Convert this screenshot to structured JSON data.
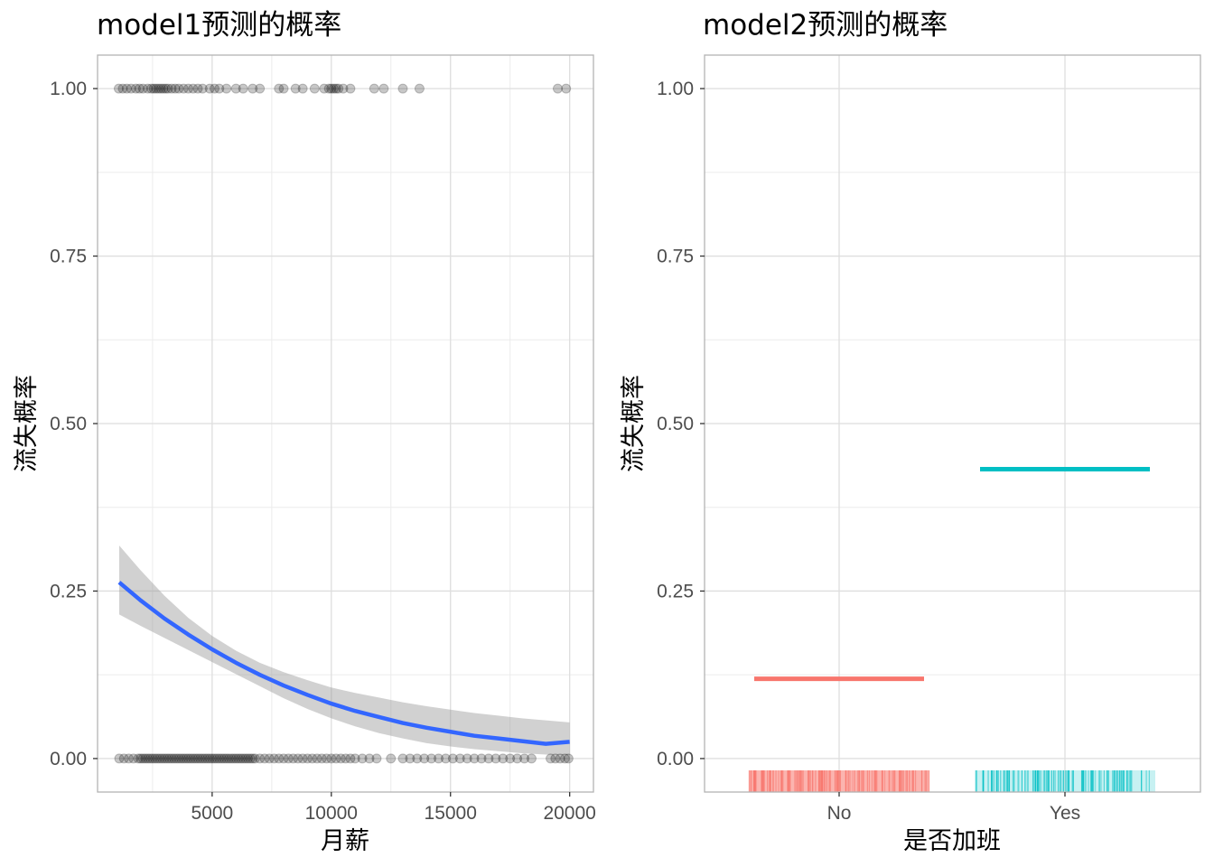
{
  "chart_data": [
    {
      "type": "scatter",
      "title": "model1预测的概率",
      "xlabel": "月薪",
      "ylabel": "流失概率",
      "xlim": [
        192,
        20998
      ],
      "ylim": [
        -0.05,
        1.05
      ],
      "xticks": [
        5000,
        10000,
        15000,
        20000
      ],
      "xtick_labels": [
        "5000",
        "10000",
        "15000",
        "20000"
      ],
      "yticks": [
        0,
        0.25,
        0.5,
        0.75,
        1
      ],
      "ytick_labels": [
        "0.00",
        "0.25",
        "0.50",
        "0.75",
        "1.00"
      ],
      "grid": true,
      "colors": {
        "points": "#000000",
        "curve": "#3366ff",
        "band": "#999999"
      },
      "points_y1": [
        1081,
        1250,
        1420,
        1600,
        1800,
        1950,
        2100,
        2300,
        2450,
        2550,
        2650,
        2750,
        2850,
        2950,
        3050,
        3150,
        3300,
        3450,
        3600,
        3800,
        4000,
        4200,
        4400,
        4600,
        4900,
        5100,
        5300,
        5600,
        6000,
        6300,
        6700,
        7000,
        7800,
        8000,
        8500,
        8800,
        9300,
        9700,
        9900,
        10000,
        10100,
        10200,
        10300,
        10500,
        10800,
        11800,
        12200,
        13000,
        13700,
        19500,
        19850
      ],
      "points_y0": [
        1100,
        1300,
        1500,
        1700,
        1900,
        2000,
        2100,
        2200,
        2300,
        2400,
        2500,
        2600,
        2700,
        2800,
        2900,
        3000,
        3100,
        3200,
        3300,
        3400,
        3500,
        3600,
        3700,
        3800,
        3900,
        4000,
        4100,
        4200,
        4300,
        4400,
        4500,
        4600,
        4700,
        4800,
        4900,
        5000,
        5100,
        5200,
        5300,
        5400,
        5500,
        5600,
        5700,
        5800,
        5900,
        6000,
        6100,
        6200,
        6300,
        6400,
        6500,
        6600,
        6700,
        6800,
        7000,
        7200,
        7400,
        7600,
        7800,
        8000,
        8200,
        8400,
        8600,
        8800,
        9000,
        9200,
        9400,
        9600,
        9800,
        10000,
        10200,
        10400,
        10600,
        10800,
        11000,
        11300,
        11600,
        11900,
        12500,
        13000,
        13300,
        13600,
        13900,
        14200,
        14500,
        14800,
        15100,
        15400,
        15700,
        16000,
        16300,
        16600,
        16900,
        17200,
        17500,
        17800,
        18100,
        18400,
        19200,
        19400,
        19600,
        19800,
        19950
      ],
      "curve": {
        "x": [
          1100,
          2000,
          3000,
          4000,
          5000,
          6000,
          7000,
          8000,
          9000,
          10000,
          11000,
          12000,
          13000,
          14000,
          15000,
          16000,
          17000,
          18000,
          19000,
          20000
        ],
        "fit": [
          0.263,
          0.236,
          0.209,
          0.185,
          0.163,
          0.143,
          0.125,
          0.109,
          0.095,
          0.082,
          0.071,
          0.062,
          0.053,
          0.046,
          0.04,
          0.034,
          0.03,
          0.026,
          0.022,
          0.025
        ],
        "lower": [
          0.215,
          0.198,
          0.18,
          0.162,
          0.144,
          0.126,
          0.108,
          0.09,
          0.074,
          0.06,
          0.048,
          0.038,
          0.03,
          0.023,
          0.018,
          0.014,
          0.011,
          0.008,
          0.006,
          0.005
        ],
        "upper": [
          0.318,
          0.281,
          0.243,
          0.21,
          0.183,
          0.161,
          0.143,
          0.129,
          0.117,
          0.106,
          0.098,
          0.091,
          0.084,
          0.078,
          0.073,
          0.068,
          0.064,
          0.06,
          0.057,
          0.054
        ]
      }
    },
    {
      "type": "bar",
      "title": "model2预测的概率",
      "xlabel": "是否加班",
      "ylabel": "流失概率",
      "categories": [
        "No",
        "Yes"
      ],
      "values": [
        0.119,
        0.432
      ],
      "ylim": [
        -0.05,
        1.05
      ],
      "yticks": [
        0,
        0.25,
        0.5,
        0.75,
        1
      ],
      "ytick_labels": [
        "0.00",
        "0.25",
        "0.50",
        "0.75",
        "1.00"
      ],
      "grid": true,
      "colors": {
        "No": "#f8766d",
        "Yes": "#00bfc4"
      },
      "rug": "jittered observations below 0 for each category"
    }
  ]
}
